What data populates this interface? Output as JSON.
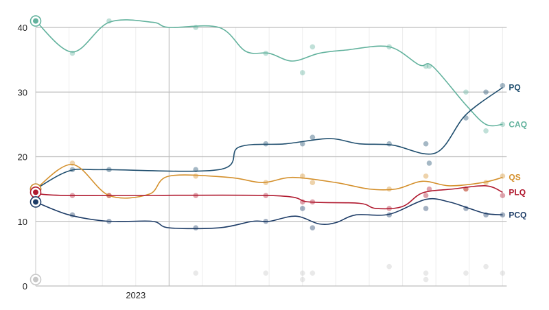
{
  "chart_data": {
    "type": "line",
    "title": "",
    "xlabel": "",
    "ylabel": "",
    "ylim": [
      0,
      40
    ],
    "yticks": [
      0,
      10,
      20,
      30,
      40
    ],
    "xlim": [
      0,
      14
    ],
    "xticks": [
      {
        "x": 3,
        "label": "2023"
      }
    ],
    "grid": true,
    "legend": "inline-right",
    "series": [
      {
        "name": "CAQ",
        "color": "#62b29d",
        "trend": [
          [
            0,
            41
          ],
          [
            1.1,
            36.2
          ],
          [
            2.2,
            40.8
          ],
          [
            3.5,
            40.8
          ],
          [
            4,
            40
          ],
          [
            5.5,
            40
          ],
          [
            6.3,
            36.3
          ],
          [
            7,
            36
          ],
          [
            7.7,
            34.8
          ],
          [
            8.5,
            36
          ],
          [
            9.3,
            36.5
          ],
          [
            10.6,
            37
          ],
          [
            11.5,
            34.2
          ],
          [
            11.9,
            34
          ],
          [
            12.9,
            28
          ],
          [
            13.5,
            25
          ],
          [
            14,
            25
          ]
        ],
        "polls": [
          [
            1.1,
            36
          ],
          [
            2.2,
            41
          ],
          [
            4.8,
            40
          ],
          [
            6.9,
            36
          ],
          [
            8,
            33
          ],
          [
            8.3,
            37
          ],
          [
            10.6,
            37
          ],
          [
            11.7,
            34
          ],
          [
            11.8,
            34
          ],
          [
            12.9,
            30
          ],
          [
            13.5,
            24
          ],
          [
            14,
            25
          ]
        ]
      },
      {
        "name": "PQ",
        "color": "#1f4e6e",
        "trend": [
          [
            0,
            15
          ],
          [
            1,
            17.8
          ],
          [
            2,
            18
          ],
          [
            5.5,
            18
          ],
          [
            6.1,
            21.5
          ],
          [
            7.5,
            22
          ],
          [
            8.8,
            22.8
          ],
          [
            9.7,
            22
          ],
          [
            10.7,
            21.8
          ],
          [
            12,
            20.6
          ],
          [
            12.9,
            26.5
          ],
          [
            14,
            30.7
          ]
        ],
        "polls": [
          [
            1.1,
            18
          ],
          [
            2.2,
            18
          ],
          [
            4.8,
            18
          ],
          [
            6.9,
            22
          ],
          [
            8,
            22
          ],
          [
            8.3,
            23
          ],
          [
            10.6,
            22
          ],
          [
            11.7,
            22
          ],
          [
            11.8,
            19
          ],
          [
            12.9,
            26
          ],
          [
            13.5,
            30
          ],
          [
            14,
            31
          ]
        ]
      },
      {
        "name": "QS",
        "color": "#d4902c",
        "trend": [
          [
            0,
            15
          ],
          [
            1.1,
            18.8
          ],
          [
            2.2,
            14
          ],
          [
            3.4,
            14.2
          ],
          [
            4,
            17
          ],
          [
            5.8,
            16.8
          ],
          [
            6.8,
            16
          ],
          [
            7.7,
            16.8
          ],
          [
            9,
            16
          ],
          [
            10,
            15
          ],
          [
            10.8,
            15
          ],
          [
            11.6,
            16.2
          ],
          [
            12.4,
            15.5
          ],
          [
            13.4,
            16
          ],
          [
            14,
            16.8
          ]
        ],
        "polls": [
          [
            1.1,
            19
          ],
          [
            2.2,
            14
          ],
          [
            4.8,
            17
          ],
          [
            6.9,
            16
          ],
          [
            8,
            17
          ],
          [
            8.3,
            16
          ],
          [
            10.6,
            15
          ],
          [
            11.7,
            17
          ],
          [
            12.9,
            15
          ],
          [
            13.5,
            16
          ],
          [
            14,
            17
          ]
        ]
      },
      {
        "name": "PLQ",
        "color": "#b0192f",
        "trend": [
          [
            0,
            14.5
          ],
          [
            1,
            14
          ],
          [
            7,
            14
          ],
          [
            8.2,
            13
          ],
          [
            9.7,
            12.8
          ],
          [
            10.2,
            12
          ],
          [
            11,
            12.3
          ],
          [
            11.6,
            14.4
          ],
          [
            12.5,
            15
          ],
          [
            13.5,
            15.5
          ],
          [
            14,
            14.5
          ]
        ],
        "polls": [
          [
            1.1,
            14
          ],
          [
            2.2,
            14
          ],
          [
            4.8,
            14
          ],
          [
            6.9,
            14
          ],
          [
            8,
            13
          ],
          [
            8.3,
            13
          ],
          [
            10.6,
            12
          ],
          [
            11.7,
            14
          ],
          [
            11.8,
            15
          ],
          [
            12.9,
            15
          ],
          [
            14,
            14
          ]
        ]
      },
      {
        "name": "PCQ",
        "color": "#1c3b66",
        "trend": [
          [
            0,
            13
          ],
          [
            1,
            11
          ],
          [
            2.2,
            10
          ],
          [
            3.5,
            10
          ],
          [
            4,
            9
          ],
          [
            5.5,
            9
          ],
          [
            6.5,
            10
          ],
          [
            7,
            10
          ],
          [
            7.8,
            10.8
          ],
          [
            8.5,
            9.6
          ],
          [
            9,
            9.8
          ],
          [
            9.6,
            11
          ],
          [
            10.6,
            11.1
          ],
          [
            11.7,
            13.4
          ],
          [
            12.4,
            13
          ],
          [
            13,
            12
          ],
          [
            13.5,
            11.2
          ],
          [
            14,
            11
          ]
        ],
        "polls": [
          [
            1.1,
            11
          ],
          [
            2.2,
            10
          ],
          [
            4.8,
            9
          ],
          [
            6.9,
            10
          ],
          [
            8,
            12
          ],
          [
            8.3,
            9
          ],
          [
            10.6,
            11
          ],
          [
            11.7,
            12
          ],
          [
            12.9,
            12
          ],
          [
            13.5,
            11
          ],
          [
            14,
            11
          ]
        ]
      },
      {
        "color": "#c8c8c8",
        "trend": [
          [
            0,
            1
          ]
        ],
        "polls": [
          [
            4.8,
            2
          ],
          [
            6.9,
            2
          ],
          [
            8,
            2
          ],
          [
            8,
            1
          ],
          [
            8.3,
            2
          ],
          [
            10.6,
            3
          ],
          [
            11.7,
            2
          ],
          [
            11.7,
            1
          ],
          [
            12.9,
            2
          ],
          [
            13.5,
            3
          ],
          [
            14,
            2
          ]
        ]
      }
    ]
  }
}
